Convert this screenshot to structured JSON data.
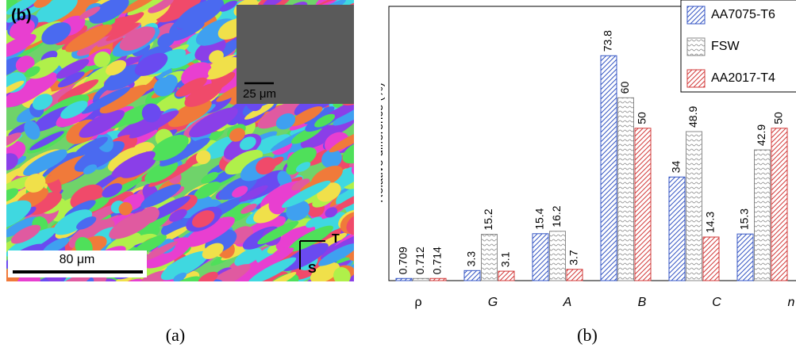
{
  "image_panel": {
    "panel_label": "(b)",
    "inset_scale": "25 μm",
    "scale_bar": "80 μm",
    "axis_t": "T",
    "axis_s": "S"
  },
  "captions": [
    "(a)",
    "(b)"
  ],
  "chart_data": {
    "type": "bar",
    "y_label": "Relative difference (%)",
    "categories": [
      "ρ",
      "G",
      "A",
      "B",
      "C",
      "n"
    ],
    "series": [
      {
        "name": "AA7075-T6",
        "color": "#3556c4",
        "values": [
          0.709,
          3.3,
          15.4,
          73.8,
          34,
          15.3
        ]
      },
      {
        "name": "FSW",
        "color": "#8a8a8a",
        "values": [
          0.712,
          15.2,
          16.2,
          60,
          48.9,
          42.9
        ]
      },
      {
        "name": "AA2017-T4",
        "color": "#d23a3a",
        "values": [
          0.714,
          3.1,
          3.7,
          50,
          14.3,
          50
        ]
      }
    ],
    "ylim": [
      0,
      90
    ],
    "legend": "upper right"
  }
}
